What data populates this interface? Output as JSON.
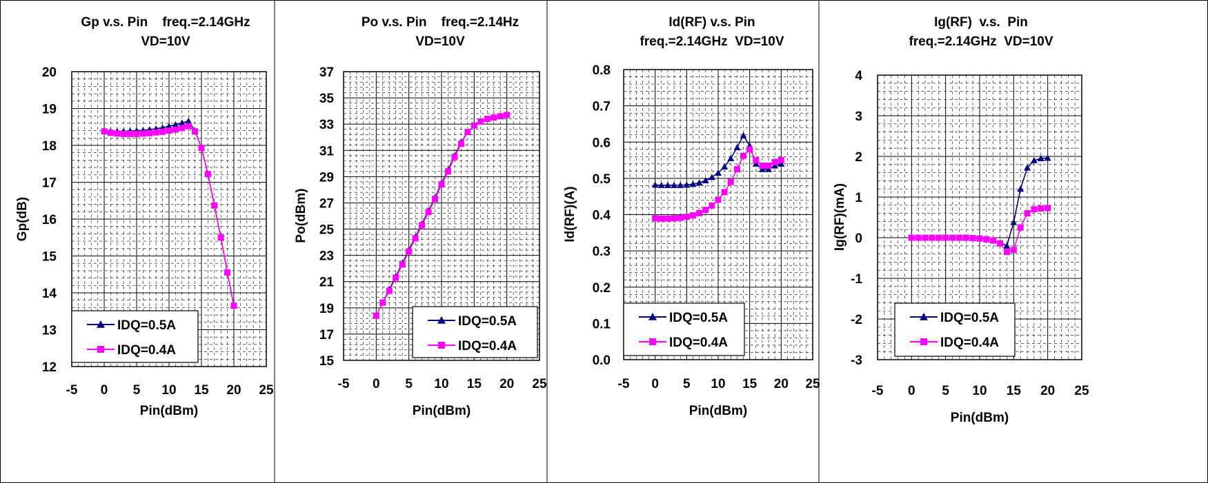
{
  "legend_labels": [
    "IDQ=0.5A",
    "IDQ=0.4A"
  ],
  "colors": {
    "idq05": "#000080",
    "idq04": "#FF00FF",
    "frame": "#000000",
    "grid": "#000000"
  },
  "chart_data": [
    {
      "type": "line",
      "title": "Gp v.s. Pin    freq.=2.14GHz",
      "subtitle": "VD=10V",
      "xlabel": "Pin(dBm)",
      "ylabel": "Gp(dB)",
      "xlim": [
        -5,
        25
      ],
      "ylim": [
        12,
        20
      ],
      "xticks": [
        "-5",
        "0",
        "5",
        "10",
        "15",
        "20",
        "25"
      ],
      "yticks": [
        "12",
        "13",
        "14",
        "15",
        "16",
        "17",
        "18",
        "19",
        "20"
      ],
      "legend_position": "bottom-left",
      "series": [
        {
          "name": "IDQ=0.5A",
          "marker": "triangle",
          "x": [
            0,
            1,
            2,
            3,
            4,
            5,
            6,
            7,
            8,
            9,
            10,
            11,
            12,
            13,
            14,
            15,
            16,
            17,
            18,
            19,
            20
          ],
          "y": [
            18.4,
            18.38,
            18.38,
            18.38,
            18.39,
            18.4,
            18.41,
            18.43,
            18.45,
            18.48,
            18.52,
            18.56,
            18.61,
            18.66,
            18.4,
            17.93,
            17.22,
            16.37,
            15.5,
            14.55,
            13.65
          ]
        },
        {
          "name": "IDQ=0.4A",
          "marker": "square",
          "x": [
            0,
            1,
            2,
            3,
            4,
            5,
            6,
            7,
            8,
            9,
            10,
            11,
            12,
            13,
            14,
            15,
            16,
            17,
            18,
            19,
            20
          ],
          "y": [
            18.38,
            18.34,
            18.32,
            18.31,
            18.31,
            18.31,
            18.32,
            18.33,
            18.35,
            18.37,
            18.4,
            18.43,
            18.47,
            18.52,
            18.38,
            17.93,
            17.22,
            16.37,
            15.5,
            14.55,
            13.65
          ]
        }
      ]
    },
    {
      "type": "line",
      "title": "Po v.s. Pin    freq.=2.14Hz",
      "subtitle": "VD=10V",
      "xlabel": "Pin(dBm)",
      "ylabel": "Po(dBm)",
      "xlim": [
        -5,
        25
      ],
      "ylim": [
        15,
        37
      ],
      "xticks": [
        "-5",
        "0",
        "5",
        "10",
        "15",
        "20",
        "25"
      ],
      "yticks": [
        "15",
        "17",
        "19",
        "21",
        "23",
        "25",
        "27",
        "29",
        "31",
        "33",
        "35",
        "37"
      ],
      "legend_position": "bottom-right",
      "series": [
        {
          "name": "IDQ=0.5A",
          "marker": "triangle",
          "x": [
            0,
            1,
            2,
            3,
            4,
            5,
            6,
            7,
            8,
            9,
            10,
            11,
            12,
            13,
            14,
            15,
            16,
            17,
            18,
            19,
            20
          ],
          "y": [
            18.4,
            19.4,
            20.4,
            21.4,
            22.4,
            23.4,
            24.4,
            25.4,
            26.4,
            27.4,
            28.5,
            29.5,
            30.6,
            31.6,
            32.4,
            32.9,
            33.2,
            33.4,
            33.5,
            33.6,
            33.7
          ]
        },
        {
          "name": "IDQ=0.4A",
          "marker": "square",
          "x": [
            0,
            1,
            2,
            3,
            4,
            5,
            6,
            7,
            8,
            9,
            10,
            11,
            12,
            13,
            14,
            15,
            16,
            17,
            18,
            19,
            20
          ],
          "y": [
            18.4,
            19.4,
            20.3,
            21.3,
            22.3,
            23.3,
            24.3,
            25.3,
            26.3,
            27.3,
            28.4,
            29.4,
            30.5,
            31.5,
            32.4,
            32.9,
            33.2,
            33.4,
            33.5,
            33.6,
            33.7
          ]
        }
      ]
    },
    {
      "type": "line",
      "title": "Id(RF) v.s. Pin",
      "subtitle": "freq.=2.14GHz  VD=10V",
      "xlabel": "Pin(dBm)",
      "ylabel": "Id(RF)(A)",
      "xlim": [
        -5,
        25
      ],
      "ylim": [
        0.0,
        0.8
      ],
      "xticks": [
        "-5",
        "0",
        "5",
        "10",
        "15",
        "20",
        "25"
      ],
      "yticks": [
        "0.0",
        "0.1",
        "0.2",
        "0.3",
        "0.4",
        "0.5",
        "0.6",
        "0.7",
        "0.8"
      ],
      "legend_position": "bottom-left",
      "series": [
        {
          "name": "IDQ=0.5A",
          "marker": "triangle",
          "x": [
            0,
            1,
            2,
            3,
            4,
            5,
            6,
            7,
            8,
            9,
            10,
            11,
            12,
            13,
            14,
            15,
            16,
            17,
            18,
            19,
            20
          ],
          "y": [
            0.482,
            0.481,
            0.481,
            0.481,
            0.481,
            0.482,
            0.484,
            0.488,
            0.494,
            0.503,
            0.515,
            0.532,
            0.555,
            0.585,
            0.618,
            0.59,
            0.54,
            0.525,
            0.525,
            0.535,
            0.54
          ]
        },
        {
          "name": "IDQ=0.4A",
          "marker": "square",
          "x": [
            0,
            1,
            2,
            3,
            4,
            5,
            6,
            7,
            8,
            9,
            10,
            11,
            12,
            13,
            14,
            15,
            16,
            17,
            18,
            19,
            20
          ],
          "y": [
            0.39,
            0.389,
            0.389,
            0.39,
            0.391,
            0.394,
            0.398,
            0.404,
            0.413,
            0.425,
            0.441,
            0.462,
            0.49,
            0.525,
            0.562,
            0.58,
            0.55,
            0.535,
            0.535,
            0.545,
            0.55
          ]
        }
      ]
    },
    {
      "type": "line",
      "title": "Ig(RF)  v.s.  Pin",
      "subtitle": "freq.=2.14GHz  VD=10V",
      "xlabel": "Pin(dBm)",
      "ylabel": "Ig(RF)(mA)",
      "xlim": [
        -5,
        25
      ],
      "ylim": [
        -3,
        4
      ],
      "xticks": [
        "-5",
        "0",
        "5",
        "10",
        "15",
        "20",
        "25"
      ],
      "yticks": [
        "-3",
        "-2",
        "-1",
        "0",
        "1",
        "2",
        "3",
        "4"
      ],
      "legend_position": "bottom-left",
      "series": [
        {
          "name": "IDQ=0.5A",
          "marker": "triangle",
          "x": [
            0,
            1,
            2,
            3,
            4,
            5,
            6,
            7,
            8,
            9,
            10,
            11,
            12,
            13,
            14,
            15,
            16,
            17,
            18,
            19,
            20
          ],
          "y": [
            0.0,
            0.0,
            0.0,
            0.0,
            0.0,
            0.0,
            0.0,
            0.0,
            0.0,
            -0.01,
            -0.02,
            -0.04,
            -0.07,
            -0.12,
            -0.2,
            0.38,
            1.2,
            1.72,
            1.9,
            1.95,
            1.96
          ]
        },
        {
          "name": "IDQ=0.4A",
          "marker": "square",
          "x": [
            0,
            1,
            2,
            3,
            4,
            5,
            6,
            7,
            8,
            9,
            10,
            11,
            12,
            13,
            14,
            15,
            16,
            17,
            18,
            19,
            20
          ],
          "y": [
            0.0,
            0.0,
            0.0,
            0.0,
            0.0,
            0.0,
            0.0,
            0.0,
            0.0,
            -0.01,
            -0.02,
            -0.04,
            -0.07,
            -0.14,
            -0.35,
            -0.3,
            0.25,
            0.6,
            0.7,
            0.72,
            0.73
          ]
        }
      ]
    }
  ]
}
